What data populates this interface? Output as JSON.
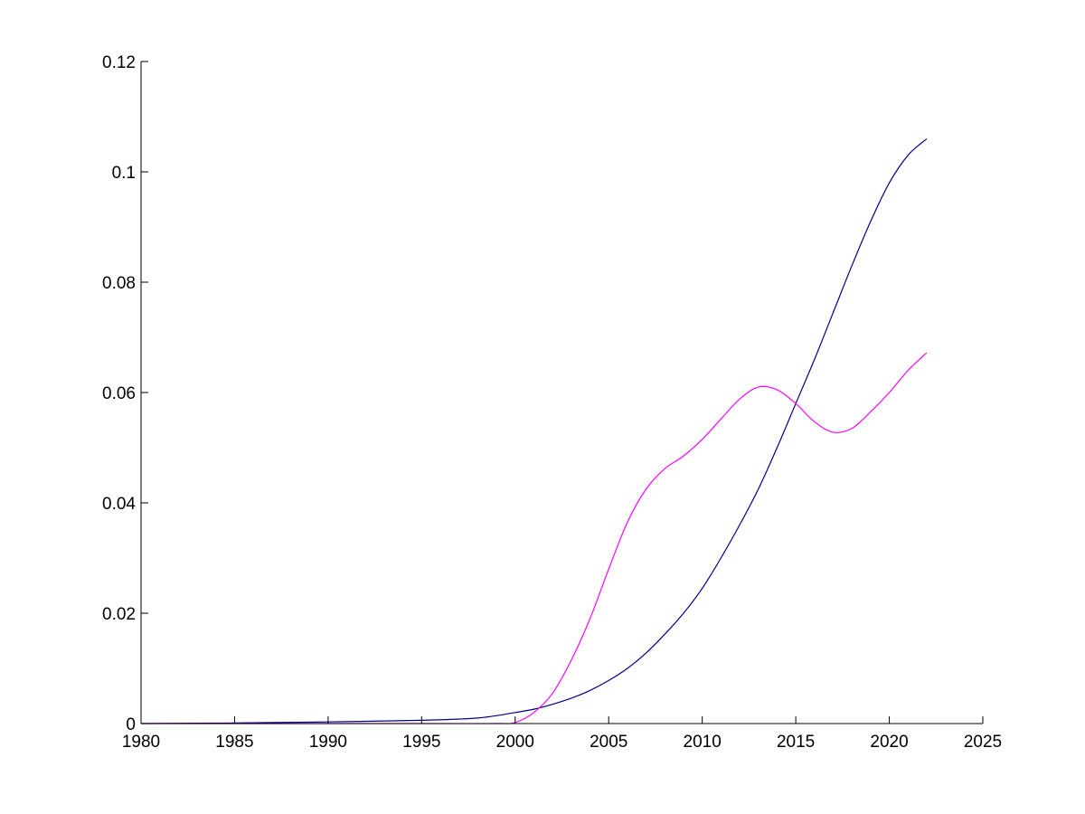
{
  "chart_data": {
    "type": "line",
    "title": "",
    "xlabel": "",
    "ylabel": "",
    "xlim": [
      1980,
      2025
    ],
    "ylim": [
      0,
      0.12
    ],
    "x_ticks": [
      1980,
      1985,
      1990,
      1995,
      2000,
      2005,
      2010,
      2015,
      2020,
      2025
    ],
    "x_tick_labels": [
      "1980",
      "1985",
      "1990",
      "1995",
      "2000",
      "2005",
      "2010",
      "2015",
      "2020",
      "2025"
    ],
    "y_ticks": [
      0,
      0.02,
      0.04,
      0.06,
      0.08,
      0.1,
      0.12
    ],
    "y_tick_labels": [
      "0",
      "0.02",
      "0.04",
      "0.06",
      "0.08",
      "0.1",
      "0.12"
    ],
    "grid": false,
    "legend": "none",
    "series": [
      {
        "color": "#00008b",
        "x": [
          1980,
          1985,
          1990,
          1995,
          1998,
          2000,
          2001,
          2002,
          2003,
          2004,
          2005,
          2006,
          2007,
          2008,
          2009,
          2010,
          2011,
          2012,
          2013,
          2014,
          2015,
          2016,
          2017,
          2018,
          2019,
          2020,
          2021,
          2022
        ],
        "values": [
          0,
          0.0001,
          0.0003,
          0.0006,
          0.001,
          0.002,
          0.0026,
          0.0035,
          0.0046,
          0.006,
          0.0078,
          0.01,
          0.0128,
          0.0162,
          0.02,
          0.0245,
          0.03,
          0.036,
          0.0425,
          0.05,
          0.058,
          0.066,
          0.0745,
          0.083,
          0.091,
          0.098,
          0.103,
          0.106
        ]
      },
      {
        "color": "#ff00ff",
        "x": [
          1980,
          1995,
          1999,
          2000,
          2001,
          2002,
          2003,
          2004,
          2005,
          2006,
          2007,
          2008,
          2009,
          2010,
          2011,
          2012,
          2013,
          2014,
          2015,
          2016,
          2017,
          2018,
          2019,
          2020,
          2021,
          2022
        ],
        "values": [
          0,
          0,
          0,
          0.0002,
          0.002,
          0.0055,
          0.0115,
          0.019,
          0.028,
          0.0365,
          0.0425,
          0.0462,
          0.0485,
          0.0515,
          0.0552,
          0.0588,
          0.061,
          0.0605,
          0.058,
          0.0547,
          0.0528,
          0.0535,
          0.0565,
          0.06,
          0.064,
          0.0672
        ]
      }
    ]
  }
}
